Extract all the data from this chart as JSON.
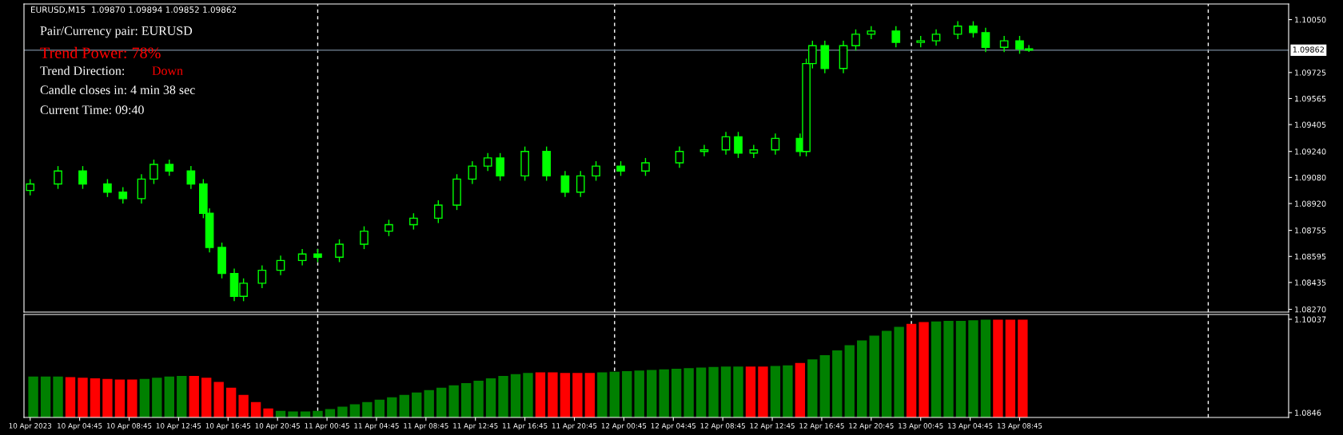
{
  "chart_data": [
    {
      "type": "candlestick",
      "color": "#00ff00",
      "x": [
        "2023-04-10T00:45",
        "2023-04-10T03:00",
        "2023-04-10T05:00",
        "2023-04-10T07:00",
        "2023-04-10T08:15",
        "2023-04-10T09:45",
        "2023-04-10T10:45",
        "2023-04-10T12:00",
        "2023-04-10T13:45",
        "2023-04-10T14:45",
        "2023-04-10T15:15",
        "2023-04-10T16:15",
        "2023-04-10T17:15",
        "2023-04-10T18:00",
        "2023-04-10T19:30",
        "2023-04-10T21:00",
        "2023-04-10T22:45",
        "2023-04-11T00:00",
        "2023-04-11T01:45",
        "2023-04-11T03:45",
        "2023-04-11T05:45",
        "2023-04-11T07:45",
        "2023-04-11T09:45",
        "2023-04-11T11:15",
        "2023-04-11T12:30",
        "2023-04-11T13:45",
        "2023-04-11T14:45",
        "2023-04-11T16:45",
        "2023-04-11T18:30",
        "2023-04-11T20:00",
        "2023-04-11T21:15",
        "2023-04-11T22:30",
        "2023-04-12T00:30",
        "2023-04-12T02:30",
        "2023-04-12T05:15",
        "2023-04-12T07:15",
        "2023-04-12T09:00",
        "2023-04-12T10:00",
        "2023-04-12T11:15",
        "2023-04-12T13:00",
        "2023-04-12T15:00",
        "2023-04-12T15:30",
        "2023-04-12T16:00",
        "2023-04-12T17:00",
        "2023-04-12T18:30",
        "2023-04-12T19:30",
        "2023-04-12T20:45",
        "2023-04-12T22:45",
        "2023-04-13T00:45",
        "2023-04-13T02:00",
        "2023-04-13T03:45",
        "2023-04-13T05:00",
        "2023-04-13T06:00",
        "2023-04-13T07:30",
        "2023-04-13T08:45",
        "2023-04-13T09:30"
      ],
      "ohlc": [
        [
          1.09,
          1.0907,
          1.0897,
          1.0904
        ],
        [
          1.0904,
          1.0915,
          1.0901,
          1.0912
        ],
        [
          1.0912,
          1.0915,
          1.0901,
          1.0904
        ],
        [
          1.0904,
          1.0907,
          1.0896,
          1.0899
        ],
        [
          1.0899,
          1.0902,
          1.0892,
          1.0895
        ],
        [
          1.0895,
          1.091,
          1.0892,
          1.0907
        ],
        [
          1.0907,
          1.0919,
          1.0904,
          1.0916
        ],
        [
          1.0916,
          1.0919,
          1.0909,
          1.0912
        ],
        [
          1.0912,
          1.0915,
          1.0901,
          1.0904
        ],
        [
          1.0904,
          1.0907,
          1.0883,
          1.0886
        ],
        [
          1.0886,
          1.0889,
          1.0862,
          1.0865
        ],
        [
          1.0865,
          1.0868,
          1.0846,
          1.0849
        ],
        [
          1.0849,
          1.0852,
          1.0832,
          1.0835
        ],
        [
          1.0835,
          1.0846,
          1.0832,
          1.0843
        ],
        [
          1.0843,
          1.0854,
          1.084,
          1.0851
        ],
        [
          1.0851,
          1.086,
          1.0848,
          1.0857
        ],
        [
          1.0857,
          1.0864,
          1.0854,
          1.0861
        ],
        [
          1.0861,
          1.0864,
          1.0856,
          1.0859
        ],
        [
          1.0859,
          1.087,
          1.0856,
          1.0867
        ],
        [
          1.0867,
          1.0878,
          1.0864,
          1.0875
        ],
        [
          1.0875,
          1.0882,
          1.0872,
          1.0879
        ],
        [
          1.0879,
          1.0886,
          1.0876,
          1.0883
        ],
        [
          1.0883,
          1.0894,
          1.088,
          1.0891
        ],
        [
          1.0891,
          1.091,
          1.0888,
          1.0907
        ],
        [
          1.0907,
          1.0918,
          1.0904,
          1.0915
        ],
        [
          1.0915,
          1.0923,
          1.0912,
          1.092
        ],
        [
          1.092,
          1.0923,
          1.0906,
          1.0909
        ],
        [
          1.0909,
          1.0927,
          1.0906,
          1.0924
        ],
        [
          1.0924,
          1.0927,
          1.0906,
          1.0909
        ],
        [
          1.0909,
          1.0912,
          1.0896,
          1.0899
        ],
        [
          1.0899,
          1.0912,
          1.0896,
          1.0909
        ],
        [
          1.0909,
          1.0918,
          1.0906,
          1.0915
        ],
        [
          1.0915,
          1.0918,
          1.0909,
          1.0912
        ],
        [
          1.0912,
          1.092,
          1.0909,
          1.0917
        ],
        [
          1.0917,
          1.0927,
          1.0914,
          1.0924
        ],
        [
          1.0924,
          1.0928,
          1.0921,
          1.0925
        ],
        [
          1.0925,
          1.0936,
          1.0922,
          1.0933
        ],
        [
          1.0933,
          1.0936,
          1.092,
          1.0923
        ],
        [
          1.0923,
          1.0928,
          1.092,
          1.0925
        ],
        [
          1.0925,
          1.0935,
          1.0922,
          1.0932
        ],
        [
          1.0932,
          1.0935,
          1.0921,
          1.0924
        ],
        [
          1.0924,
          1.0981,
          1.0921,
          1.0978
        ],
        [
          1.0978,
          1.0992,
          1.0975,
          1.0989
        ],
        [
          1.0989,
          1.0992,
          1.0972,
          1.0975
        ],
        [
          1.0975,
          1.0992,
          1.0972,
          1.0989
        ],
        [
          1.0989,
          1.0999,
          1.0986,
          1.0996
        ],
        [
          1.0996,
          1.1001,
          1.0993,
          1.0998
        ],
        [
          1.0998,
          1.1001,
          1.0988,
          1.0991
        ],
        [
          1.0991,
          1.0995,
          1.0988,
          1.0992
        ],
        [
          1.0992,
          1.0999,
          1.0989,
          1.0996
        ],
        [
          1.0996,
          1.1004,
          1.0993,
          1.1001
        ],
        [
          1.1001,
          1.1004,
          1.0994,
          1.0997
        ],
        [
          1.0997,
          1.1,
          1.0985,
          1.0988
        ],
        [
          1.0988,
          1.0995,
          1.0985,
          1.0992
        ],
        [
          1.0992,
          1.0995,
          1.0984,
          1.0987
        ],
        [
          1.0987,
          1.09894,
          1.09852,
          1.09862
        ]
      ],
      "xlim": [
        "2023-04-10T00:15",
        "2023-04-14T06:30"
      ],
      "ylim": [
        1.08253,
        1.10146
      ],
      "yticks": [
        {
          "value": 1.1005,
          "label": "1.10050"
        },
        {
          "value": 1.09725,
          "label": "1.09725"
        },
        {
          "value": 1.09565,
          "label": "1.09565"
        },
        {
          "value": 1.09405,
          "label": "1.09405"
        },
        {
          "value": 1.0924,
          "label": "1.09240"
        },
        {
          "value": 1.0908,
          "label": "1.09080"
        },
        {
          "value": 1.0892,
          "label": "1.08920"
        },
        {
          "value": 1.08755,
          "label": "1.08755"
        },
        {
          "value": 1.08595,
          "label": "1.08595"
        },
        {
          "value": 1.08435,
          "label": "1.08435"
        },
        {
          "value": 1.0827,
          "label": "1.08270"
        }
      ],
      "tick_labels": "y",
      "grid": false,
      "ref_lines": [
        {
          "axis": "x",
          "value": "2023-04-11T00:00",
          "color": "#ffffff",
          "line_style": "dashed"
        },
        {
          "axis": "x",
          "value": "2023-04-12T00:00",
          "color": "#ffffff",
          "line_style": "dashed"
        },
        {
          "axis": "x",
          "value": "2023-04-13T00:00",
          "color": "#ffffff",
          "line_style": "dashed"
        },
        {
          "axis": "x",
          "value": "2023-04-14T00:00",
          "color": "#ffffff",
          "line_style": "dashed"
        },
        {
          "axis": "y",
          "value": 1.09862,
          "label": "1.09862",
          "color": "#778899",
          "line_style": "solid"
        }
      ],
      "annotations": [
        "EURUSD,M15  1.09870 1.09894 1.09852 1.09862",
        "Pair/Currency pair: EURUSD",
        "Trend Power: 78%",
        "Trend Direction:",
        "Down",
        "Candle closes in: 4 min 38 sec",
        "Current Time: 09:40"
      ]
    },
    {
      "type": "bar",
      "x": [
        "2023-04-10T01:00",
        "2023-04-10T02:00",
        "2023-04-10T03:00",
        "2023-04-10T04:00",
        "2023-04-10T05:00",
        "2023-04-10T06:00",
        "2023-04-10T07:00",
        "2023-04-10T08:00",
        "2023-04-10T09:00",
        "2023-04-10T10:00",
        "2023-04-10T11:00",
        "2023-04-10T12:00",
        "2023-04-10T13:00",
        "2023-04-10T14:00",
        "2023-04-10T15:00",
        "2023-04-10T16:00",
        "2023-04-10T17:00",
        "2023-04-10T18:00",
        "2023-04-10T19:00",
        "2023-04-10T20:00",
        "2023-04-10T21:00",
        "2023-04-10T22:00",
        "2023-04-10T23:00",
        "2023-04-11T00:00",
        "2023-04-11T01:00",
        "2023-04-11T02:00",
        "2023-04-11T03:00",
        "2023-04-11T04:00",
        "2023-04-11T05:00",
        "2023-04-11T06:00",
        "2023-04-11T07:00",
        "2023-04-11T08:00",
        "2023-04-11T09:00",
        "2023-04-11T10:00",
        "2023-04-11T11:00",
        "2023-04-11T12:00",
        "2023-04-11T13:00",
        "2023-04-11T14:00",
        "2023-04-11T15:00",
        "2023-04-11T16:00",
        "2023-04-11T17:00",
        "2023-04-11T18:00",
        "2023-04-11T19:00",
        "2023-04-11T20:00",
        "2023-04-11T21:00",
        "2023-04-11T22:00",
        "2023-04-11T23:00",
        "2023-04-12T00:00",
        "2023-04-12T01:00",
        "2023-04-12T02:00",
        "2023-04-12T03:00",
        "2023-04-12T04:00",
        "2023-04-12T05:00",
        "2023-04-12T06:00",
        "2023-04-12T07:00",
        "2023-04-12T08:00",
        "2023-04-12T09:00",
        "2023-04-12T10:00",
        "2023-04-12T11:00",
        "2023-04-12T12:00",
        "2023-04-12T13:00",
        "2023-04-12T14:00",
        "2023-04-12T15:00",
        "2023-04-12T16:00",
        "2023-04-12T17:00",
        "2023-04-12T18:00",
        "2023-04-12T19:00",
        "2023-04-12T20:00",
        "2023-04-12T21:00",
        "2023-04-12T22:00",
        "2023-04-12T23:00",
        "2023-04-13T00:00",
        "2023-04-13T01:00",
        "2023-04-13T02:00",
        "2023-04-13T03:00",
        "2023-04-13T04:00",
        "2023-04-13T05:00",
        "2023-04-13T06:00",
        "2023-04-13T07:00",
        "2023-04-13T08:00",
        "2023-04-13T09:00"
      ],
      "values": [
        1.0907,
        1.0907,
        1.0907,
        1.0906,
        1.0905,
        1.0904,
        1.0903,
        1.0902,
        1.0902,
        1.0903,
        1.0905,
        1.0907,
        1.0908,
        1.0908,
        1.0905,
        1.0898,
        1.0888,
        1.0876,
        1.0864,
        1.0853,
        1.0849,
        1.0848,
        1.0848,
        1.0849,
        1.0852,
        1.0856,
        1.086,
        1.0864,
        1.0868,
        1.0872,
        1.0876,
        1.088,
        1.0884,
        1.0888,
        1.0892,
        1.0896,
        1.09,
        1.0904,
        1.0908,
        1.0911,
        1.0913,
        1.0914,
        1.0914,
        1.0913,
        1.0913,
        1.0913,
        1.0914,
        1.0915,
        1.0916,
        1.0917,
        1.0918,
        1.0919,
        1.092,
        1.0921,
        1.0922,
        1.0923,
        1.0924,
        1.0924,
        1.0924,
        1.0924,
        1.0925,
        1.0926,
        1.093,
        1.0936,
        1.0943,
        1.0951,
        1.096,
        1.0968,
        1.0976,
        1.0984,
        1.0991,
        1.0996,
        1.0999,
        1.1,
        1.1001,
        1.1001,
        1.1002,
        1.1003,
        1.1003,
        1.1003,
        1.1003
      ],
      "colors": [
        "#008000",
        "#008000",
        "#008000",
        "#ff0000",
        "#ff0000",
        "#ff0000",
        "#ff0000",
        "#ff0000",
        "#ff0000",
        "#008000",
        "#008000",
        "#008000",
        "#008000",
        "#ff0000",
        "#ff0000",
        "#ff0000",
        "#ff0000",
        "#ff0000",
        "#ff0000",
        "#ff0000",
        "#008000",
        "#008000",
        "#008000",
        "#008000",
        "#008000",
        "#008000",
        "#008000",
        "#008000",
        "#008000",
        "#008000",
        "#008000",
        "#008000",
        "#008000",
        "#008000",
        "#008000",
        "#008000",
        "#008000",
        "#008000",
        "#008000",
        "#008000",
        "#008000",
        "#ff0000",
        "#ff0000",
        "#ff0000",
        "#ff0000",
        "#ff0000",
        "#008000",
        "#008000",
        "#008000",
        "#008000",
        "#008000",
        "#008000",
        "#008000",
        "#008000",
        "#008000",
        "#008000",
        "#008000",
        "#008000",
        "#ff0000",
        "#ff0000",
        "#008000",
        "#008000",
        "#ff0000",
        "#008000",
        "#008000",
        "#008000",
        "#008000",
        "#008000",
        "#008000",
        "#008000",
        "#008000",
        "#ff0000",
        "#ff0000",
        "#008000",
        "#008000",
        "#008000",
        "#008000",
        "#008000",
        "#ff0000",
        "#ff0000",
        "#ff0000"
      ],
      "xlim": [
        "2023-04-10T00:15",
        "2023-04-14T06:30"
      ],
      "ylim": [
        1.08379,
        1.10118
      ],
      "yticks": [
        1.10037,
        1.0846
      ],
      "xticks": [
        {
          "value": "2023-04-10T00:45",
          "label": "10 Apr 2023"
        },
        {
          "value": "2023-04-10T04:45",
          "label": "10 Apr 04:45"
        },
        {
          "value": "2023-04-10T08:45",
          "label": "10 Apr 08:45"
        },
        {
          "value": "2023-04-10T12:45",
          "label": "10 Apr 12:45"
        },
        {
          "value": "2023-04-10T16:45",
          "label": "10 Apr 16:45"
        },
        {
          "value": "2023-04-10T20:45",
          "label": "10 Apr 20:45"
        },
        {
          "value": "2023-04-11T00:45",
          "label": "11 Apr 00:45"
        },
        {
          "value": "2023-04-11T04:45",
          "label": "11 Apr 04:45"
        },
        {
          "value": "2023-04-11T08:45",
          "label": "11 Apr 08:45"
        },
        {
          "value": "2023-04-11T12:45",
          "label": "11 Apr 12:45"
        },
        {
          "value": "2023-04-11T16:45",
          "label": "11 Apr 16:45"
        },
        {
          "value": "2023-04-11T20:45",
          "label": "11 Apr 20:45"
        },
        {
          "value": "2023-04-12T00:45",
          "label": "12 Apr 00:45"
        },
        {
          "value": "2023-04-12T04:45",
          "label": "12 Apr 04:45"
        },
        {
          "value": "2023-04-12T08:45",
          "label": "12 Apr 08:45"
        },
        {
          "value": "2023-04-12T12:45",
          "label": "12 Apr 12:45"
        },
        {
          "value": "2023-04-12T16:45",
          "label": "12 Apr 16:45"
        },
        {
          "value": "2023-04-12T20:45",
          "label": "12 Apr 20:45"
        },
        {
          "value": "2023-04-13T00:45",
          "label": "13 Apr 00:45"
        },
        {
          "value": "2023-04-13T04:45",
          "label": "13 Apr 04:45"
        },
        {
          "value": "2023-04-13T08:45",
          "label": "13 Apr 08:45"
        }
      ],
      "grid": false,
      "ref_lines": [
        {
          "axis": "x",
          "value": "2023-04-11T00:00",
          "color": "#ffffff",
          "line_style": "dashed"
        },
        {
          "axis": "x",
          "value": "2023-04-12T00:00",
          "color": "#ffffff",
          "line_style": "dashed"
        },
        {
          "axis": "x",
          "value": "2023-04-13T00:00",
          "color": "#ffffff",
          "line_style": "dashed"
        },
        {
          "axis": "x",
          "value": "2023-04-14T00:00",
          "color": "#ffffff",
          "line_style": "dashed"
        }
      ]
    }
  ]
}
